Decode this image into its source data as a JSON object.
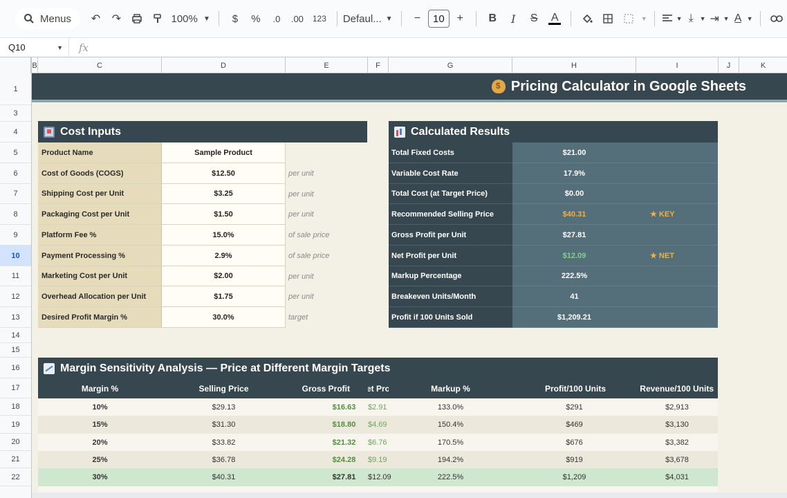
{
  "toolbar": {
    "menus_label": "Menus",
    "zoom": "100%",
    "currency": "$",
    "percent": "%",
    "dec_decrease": ".0",
    "dec_increase": ".00",
    "number_format": "123",
    "font": "Defaul...",
    "font_size": "10"
  },
  "formula_bar": {
    "cell_ref": "Q10",
    "fx": "fx",
    "formula": ""
  },
  "columns": [
    "B",
    "C",
    "D",
    "E",
    "F",
    "G",
    "H",
    "I",
    "J",
    "K"
  ],
  "rows": [
    "1",
    "3",
    "4",
    "5",
    "6",
    "7",
    "8",
    "9",
    "10",
    "11",
    "12",
    "13",
    "14",
    "15",
    "16",
    "17",
    "18",
    "19",
    "20",
    "21",
    "22"
  ],
  "selected_row": "10",
  "banner": {
    "title": "Pricing Calculator in Google Sheets",
    "icon": "money-bag-icon"
  },
  "inputs": {
    "title": "Cost Inputs",
    "icon": "inbox-icon",
    "rows": [
      {
        "label": "Product Name",
        "value": "Sample Product",
        "note": ""
      },
      {
        "label": "Cost of Goods (COGS)",
        "value": "$12.50",
        "note": "per unit"
      },
      {
        "label": "Shipping Cost per Unit",
        "value": "$3.25",
        "note": "per unit"
      },
      {
        "label": "Packaging Cost per Unit",
        "value": "$1.50",
        "note": "per unit"
      },
      {
        "label": "Platform Fee %",
        "value": "15.0%",
        "note": "of sale price"
      },
      {
        "label": "Payment Processing %",
        "value": "2.9%",
        "note": "of sale price"
      },
      {
        "label": "Marketing Cost per Unit",
        "value": "$2.00",
        "note": "per unit"
      },
      {
        "label": "Overhead Allocation per Unit",
        "value": "$1.75",
        "note": "per unit"
      },
      {
        "label": "Desired Profit Margin %",
        "value": "30.0%",
        "note": "target"
      }
    ]
  },
  "results": {
    "title": "Calculated Results",
    "icon": "bar-chart-icon",
    "rows": [
      {
        "label": "Total Fixed Costs",
        "value": "$21.00",
        "tag": ""
      },
      {
        "label": "Variable Cost Rate",
        "value": "17.9%",
        "tag": ""
      },
      {
        "label": "Total Cost (at Target Price)",
        "value": "$0.00",
        "tag": ""
      },
      {
        "label": "Recommended Selling Price",
        "value": "$40.31",
        "tag": "★ KEY"
      },
      {
        "label": "Gross Profit per Unit",
        "value": "$27.81",
        "tag": ""
      },
      {
        "label": "Net Profit per Unit",
        "value": "$12.09",
        "tag": "★ NET"
      },
      {
        "label": "Markup Percentage",
        "value": "222.5%",
        "tag": ""
      },
      {
        "label": "Breakeven Units/Month",
        "value": "41",
        "tag": ""
      },
      {
        "label": "Profit if 100 Units Sold",
        "value": "$1,209.21",
        "tag": ""
      }
    ]
  },
  "sensitivity": {
    "title": "Margin Sensitivity Analysis — Price at Different Margin Targets",
    "icon": "trend-chart-icon",
    "headers": [
      "Margin %",
      "Selling Price",
      "Gross Profit",
      "et Pro",
      "Markup %",
      "Profit/100 Units",
      "Revenue/100 Units"
    ],
    "rows": [
      [
        "10%",
        "$29.13",
        "$16.63",
        "$2.91",
        "133.0%",
        "$291",
        "$2,913"
      ],
      [
        "15%",
        "$31.30",
        "$18.80",
        "$4.69",
        "150.4%",
        "$469",
        "$3,130"
      ],
      [
        "20%",
        "$33.82",
        "$21.32",
        "$6.76",
        "170.5%",
        "$676",
        "$3,382"
      ],
      [
        "25%",
        "$36.78",
        "$24.28",
        "$9.19",
        "194.2%",
        "$919",
        "$3,678"
      ],
      [
        "30%",
        "$40.31",
        "$27.81",
        "$12.09",
        "222.5%",
        "$1,209",
        "$4,031"
      ]
    ]
  },
  "colors": {
    "header_dark": "#37474f",
    "value_slate": "#546e7a",
    "label_tan": "#e6dcbc",
    "sheet_bg": "#f3f0e6",
    "accent_gold": "#f0b046",
    "accent_green": "#7fd18a"
  }
}
